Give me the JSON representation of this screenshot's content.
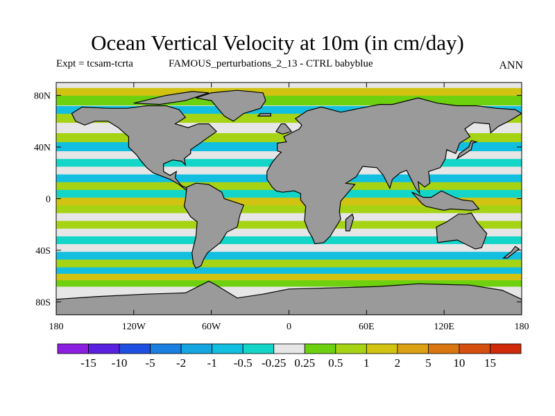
{
  "header": {
    "title": "Ocean Vertical Velocity at 10m (in cm/day)",
    "expt": "Expt = tcsam-tcrta",
    "description": "FAMOUS_perturbations_2_13 - CTRL babyblue",
    "season": "ANN"
  },
  "chart_data": {
    "type": "heatmap",
    "title": "Ocean Vertical Velocity at 10m (in cm/day)",
    "xlabel": "",
    "ylabel": "",
    "xlim": [
      -180,
      180
    ],
    "ylim": [
      -90,
      90
    ],
    "x_ticks": [
      {
        "value": -180,
        "label": "180"
      },
      {
        "value": -120,
        "label": "120W"
      },
      {
        "value": -60,
        "label": "60W"
      },
      {
        "value": 0,
        "label": "0"
      },
      {
        "value": 60,
        "label": "60E"
      },
      {
        "value": 120,
        "label": "120E"
      },
      {
        "value": 180,
        "label": "180"
      }
    ],
    "y_ticks": [
      {
        "value": 80,
        "label": "80N"
      },
      {
        "value": 40,
        "label": "40N"
      },
      {
        "value": 0,
        "label": "0"
      },
      {
        "value": -40,
        "label": "40S"
      },
      {
        "value": -80,
        "label": "80S"
      }
    ],
    "colorbar": {
      "levels": [
        "-15",
        "-10",
        "-5",
        "-2",
        "-1",
        "-0.5",
        "-0.25",
        "0.25",
        "0.5",
        "1",
        "2",
        "5",
        "10",
        "15"
      ],
      "colors": [
        "#8b1ee0",
        "#5a20e0",
        "#1f4fe0",
        "#1a7fe0",
        "#13a6e0",
        "#12bfe0",
        "#14d6c8",
        "#e6e6e6",
        "#6ed10f",
        "#a6d414",
        "#d2c313",
        "#dba013",
        "#d9760f",
        "#d5500f",
        "#d02a0a"
      ]
    },
    "land_color": "#9a9a9a",
    "zonal_bands": [
      {
        "lat": 82,
        "level": 1
      },
      {
        "lat": 76,
        "level": 0.3
      },
      {
        "lat": 68,
        "level": -1
      },
      {
        "lat": 62,
        "level": 0.7
      },
      {
        "lat": 55,
        "level": 0
      },
      {
        "lat": 47,
        "level": 0.7
      },
      {
        "lat": 40,
        "level": -0.7
      },
      {
        "lat": 33,
        "level": 0
      },
      {
        "lat": 27,
        "level": -0.4
      },
      {
        "lat": 21,
        "level": 0
      },
      {
        "lat": 15,
        "level": -0.7
      },
      {
        "lat": 9,
        "level": 0.7
      },
      {
        "lat": 3,
        "level": -0.4
      },
      {
        "lat": -3,
        "level": 1.5
      },
      {
        "lat": -9,
        "level": 0.7
      },
      {
        "lat": -15,
        "level": 0
      },
      {
        "lat": -21,
        "level": 0.7
      },
      {
        "lat": -27,
        "level": 0
      },
      {
        "lat": -33,
        "level": -0.4
      },
      {
        "lat": -39,
        "level": 0
      },
      {
        "lat": -45,
        "level": -0.7
      },
      {
        "lat": -51,
        "level": 0.7
      },
      {
        "lat": -57,
        "level": -1
      },
      {
        "lat": -62,
        "level": 1
      },
      {
        "lat": -67,
        "level": 0.3
      },
      {
        "lat": -72,
        "level": 0
      }
    ]
  }
}
